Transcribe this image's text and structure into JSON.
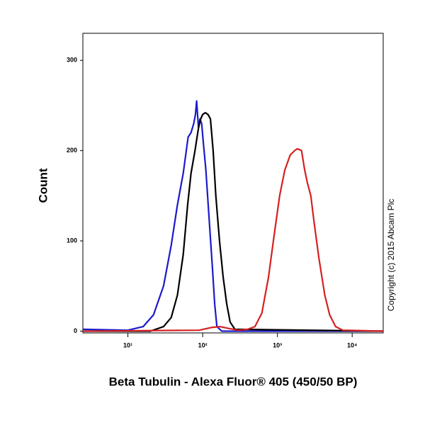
{
  "chart_data": {
    "type": "line",
    "x_label": "Beta Tubulin - Alexa Fluor® 405 (450/50 BP)",
    "y_label": "Count",
    "annotation": "Copyright (c) 2015 Abcam Plc",
    "x_log": true,
    "xlim": [
      2.5,
      26000
    ],
    "ylim": [
      -2,
      330
    ],
    "xticks": [
      {
        "value": 10,
        "label": "10¹"
      },
      {
        "value": 100,
        "label": "10²"
      },
      {
        "value": 1000,
        "label": "10³"
      },
      {
        "value": 10000,
        "label": "10⁴"
      }
    ],
    "yticks": [
      0,
      100,
      200,
      300
    ],
    "series": [
      {
        "color": "#1a1acc",
        "x": [
          2.5,
          10,
          16,
          22,
          30,
          38,
          46,
          55,
          64,
          70,
          76,
          80,
          83,
          88,
          92,
          97,
          103,
          110,
          122,
          135,
          145,
          155,
          180,
          26000
        ],
        "values": [
          2,
          1,
          5,
          18,
          50,
          95,
          140,
          175,
          215,
          220,
          230,
          240,
          255,
          225,
          235,
          230,
          205,
          180,
          125,
          70,
          30,
          5,
          0,
          0
        ]
      },
      {
        "color": "#000000",
        "x": [
          2.5,
          20,
          30,
          38,
          46,
          55,
          63,
          70,
          79,
          88,
          94,
          100,
          109,
          118,
          127,
          138,
          150,
          168,
          188,
          210,
          233,
          270,
          26000
        ],
        "values": [
          0,
          0,
          5,
          15,
          40,
          85,
          140,
          175,
          200,
          225,
          235,
          240,
          242,
          240,
          235,
          200,
          150,
          100,
          60,
          30,
          10,
          2,
          0
        ]
      },
      {
        "color": "#d62020",
        "x": [
          2.5,
          90,
          130,
          170,
          220,
          300,
          400,
          500,
          620,
          760,
          900,
          1070,
          1250,
          1480,
          1700,
          1840,
          2000,
          2100,
          2300,
          2500,
          2800,
          3100,
          3600,
          4300,
          5000,
          6000,
          7500,
          26000
        ],
        "values": [
          0,
          1,
          4,
          5,
          3,
          1,
          2,
          5,
          20,
          60,
          105,
          150,
          178,
          195,
          200,
          202,
          201,
          200,
          180,
          165,
          150,
          120,
          80,
          40,
          18,
          5,
          1,
          0
        ]
      }
    ]
  }
}
